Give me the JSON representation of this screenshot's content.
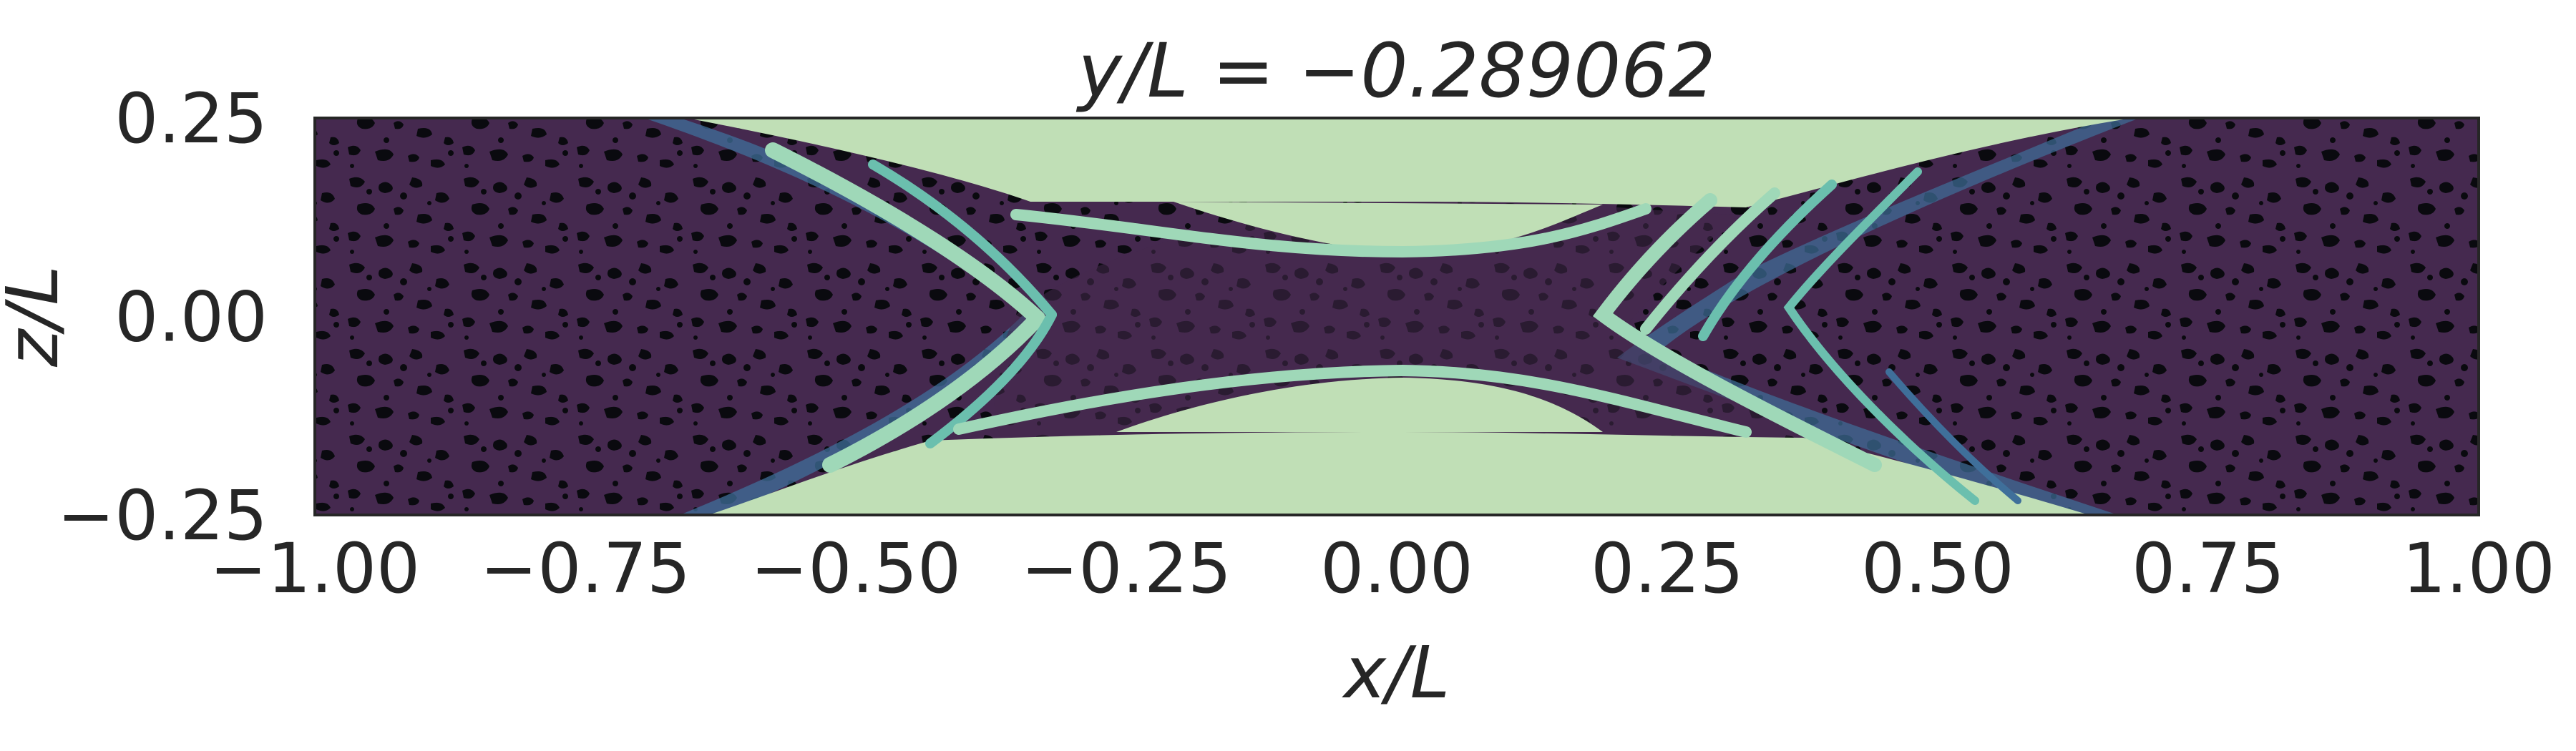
{
  "chart_data": {
    "type": "heatmap",
    "title": "y/L = −0.289062",
    "xlabel": "x/L",
    "ylabel": "z/L",
    "xlim": [
      -1.0,
      1.0
    ],
    "ylim": [
      -0.25,
      0.25
    ],
    "x_ticks": [
      "−1.00",
      "−0.75",
      "−0.50",
      "−0.25",
      "0.00",
      "0.25",
      "0.50",
      "0.75",
      "1.00"
    ],
    "y_ticks": [
      "0.25",
      "0.00",
      "−0.25"
    ],
    "grid": false,
    "colors": {
      "background_field": "#45294f",
      "noise": "#0a0a0f",
      "saturated_region": "#c0dfb6",
      "band_light": "#9fd8b8",
      "band_mid": "#6bbfae",
      "band_dark": "#3f6f9a",
      "axes": "#262626"
    }
  }
}
